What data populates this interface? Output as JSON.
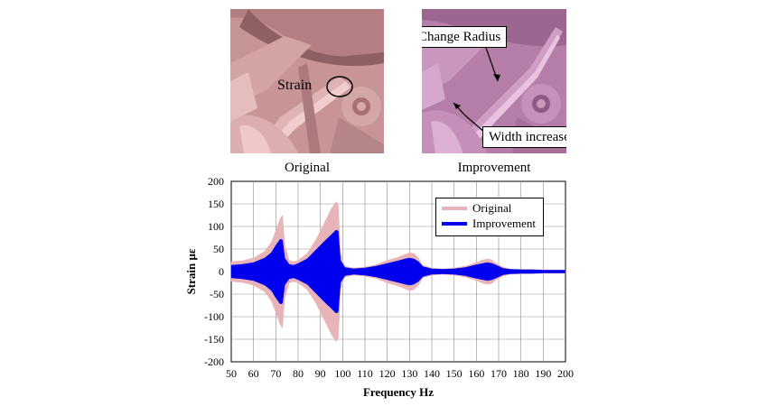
{
  "images": {
    "original": {
      "caption": "Original",
      "annotation": "Strain"
    },
    "improvement": {
      "caption": "Improvement",
      "callouts": [
        "Change Radius",
        "Width increase"
      ]
    }
  },
  "colors": {
    "original_series": "#e8b4b8",
    "improvement_series": "#0000ee",
    "original_part": "#c9908f",
    "improvement_part": "#b57fa8"
  },
  "chart_data": {
    "type": "area",
    "xlabel": "Frequency Hz",
    "ylabel": "Strain με",
    "xlim": [
      50,
      200
    ],
    "ylim": [
      -200,
      200
    ],
    "xticks": [
      50,
      60,
      70,
      80,
      90,
      100,
      110,
      120,
      130,
      140,
      150,
      160,
      170,
      180,
      190,
      200
    ],
    "yticks": [
      200,
      150,
      100,
      50,
      0,
      -50,
      -100,
      -150,
      -200
    ],
    "grid": true,
    "legend_position": "top-right",
    "series": [
      {
        "name": "Original",
        "x": [
          50,
          55,
          60,
          65,
          68,
          70,
          72,
          73,
          74,
          76,
          78,
          80,
          84,
          88,
          92,
          95,
          97,
          98,
          99,
          101,
          105,
          110,
          115,
          120,
          125,
          128,
          130,
          132,
          134,
          136,
          140,
          145,
          150,
          155,
          160,
          163,
          165,
          167,
          169,
          172,
          175,
          180,
          185,
          190,
          195,
          200
        ],
        "values": [
          22,
          24,
          30,
          45,
          65,
          90,
          118,
          125,
          60,
          25,
          22,
          25,
          40,
          70,
          110,
          140,
          155,
          150,
          40,
          12,
          8,
          10,
          15,
          25,
          32,
          38,
          42,
          40,
          30,
          14,
          8,
          6,
          8,
          12,
          20,
          26,
          28,
          26,
          18,
          10,
          6,
          5,
          5,
          4,
          4,
          4
        ]
      },
      {
        "name": "Improvement",
        "x": [
          50,
          55,
          60,
          65,
          68,
          70,
          72,
          73,
          74,
          76,
          78,
          80,
          84,
          88,
          92,
          95,
          97,
          98,
          99,
          101,
          105,
          110,
          115,
          120,
          125,
          128,
          130,
          132,
          134,
          136,
          140,
          145,
          150,
          155,
          160,
          163,
          165,
          167,
          169,
          172,
          175,
          180,
          185,
          190,
          195,
          200
        ],
        "values": [
          14,
          16,
          20,
          30,
          42,
          58,
          72,
          70,
          30,
          16,
          14,
          18,
          28,
          48,
          68,
          82,
          92,
          90,
          25,
          9,
          6,
          8,
          12,
          18,
          24,
          28,
          30,
          28,
          22,
          11,
          6,
          5,
          6,
          9,
          15,
          18,
          20,
          18,
          14,
          7,
          5,
          4,
          4,
          3,
          3,
          3
        ]
      }
    ]
  }
}
